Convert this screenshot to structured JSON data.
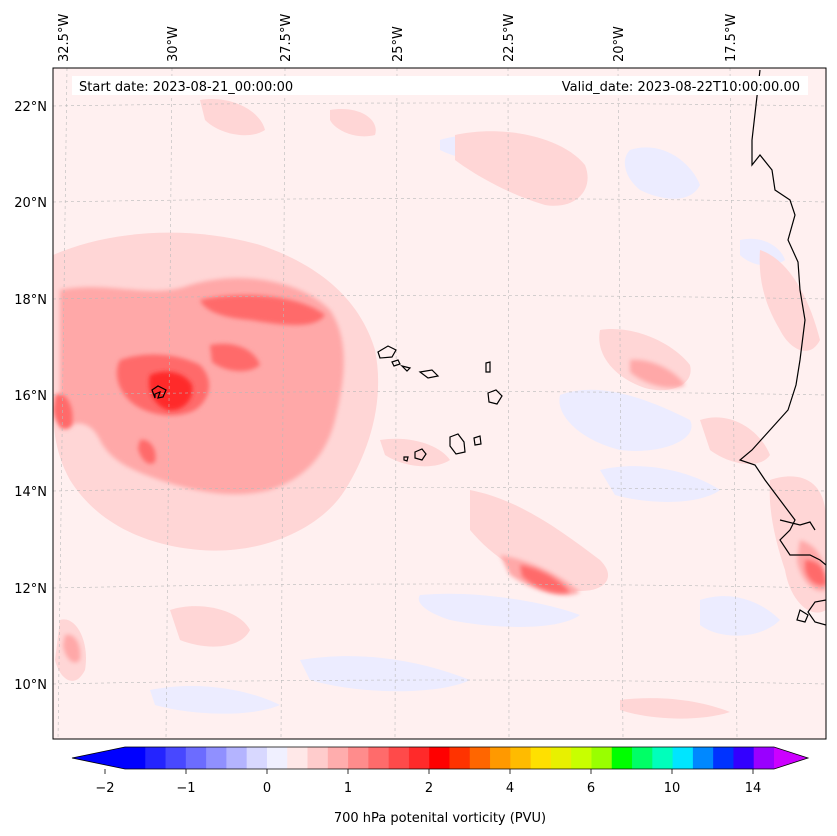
{
  "start_label": "Start date: 2023-08-21_00:00:00",
  "valid_label": "Valid_date: 2023-08-22T10:00:00.00",
  "lon_labels": [
    "32.5°W",
    "30°W",
    "27.5°W",
    "25°W",
    "22.5°W",
    "20°W",
    "17.5°W"
  ],
  "lat_labels": [
    "22°N",
    "20°N",
    "18°N",
    "16°N",
    "14°N",
    "12°N",
    "10°N"
  ],
  "colorbar": {
    "title": "700 hPa potenital vorticity (PVU)",
    "tick_labels": [
      "−2",
      "−1",
      "0",
      "1",
      "2",
      "4",
      "6",
      "10",
      "14"
    ],
    "colors": [
      "#0000ff",
      "#2424ff",
      "#4848ff",
      "#6c6cff",
      "#9090ff",
      "#b4b4ff",
      "#d8d8ff",
      "#f0f0ff",
      "#ffe8e8",
      "#ffcccc",
      "#ffadad",
      "#ff8c8c",
      "#ff6b6b",
      "#ff4a4a",
      "#ff2a2a",
      "#ff0000",
      "#ff3300",
      "#ff6600",
      "#ff9900",
      "#ffbb00",
      "#ffe000",
      "#e8f000",
      "#c8ff00",
      "#99ff00",
      "#00ff00",
      "#00ff66",
      "#00ffbb",
      "#00e5ff",
      "#0088ff",
      "#0033ff",
      "#3300ff",
      "#9900ff"
    ],
    "under_color": "#0000ff",
    "over_color": "#cc00ff"
  }
}
